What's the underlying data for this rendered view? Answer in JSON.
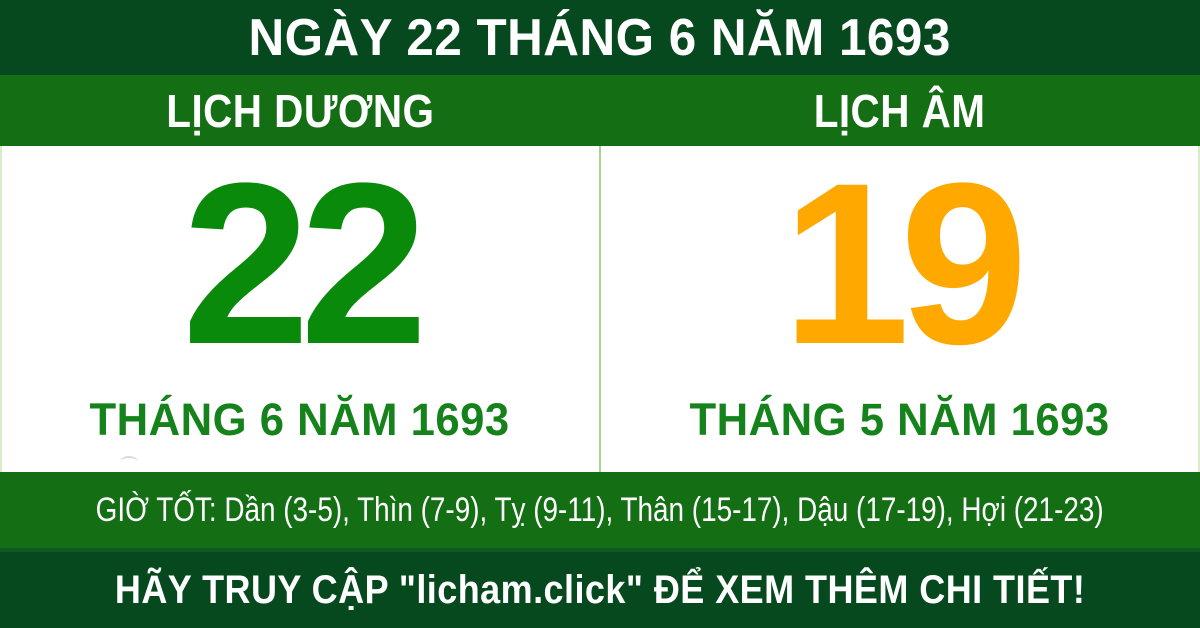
{
  "colors": {
    "dark_green": "#07491f",
    "medium_green": "#146e14",
    "number_green": "#0a8a0a",
    "month_green": "#15821c",
    "lunar_orange": "#ffa800",
    "divider_green": "#a7d78f"
  },
  "header": {
    "title": "NGÀY 22 THÁNG 6 NĂM 1693"
  },
  "calendars": {
    "solar": {
      "label": "LỊCH DƯƠNG",
      "day": "22",
      "month_year": "THÁNG 6 NĂM 1693"
    },
    "lunar": {
      "label": "LỊCH ÂM",
      "day": "19",
      "month_year": "THÁNG 5 NĂM 1693"
    }
  },
  "good_hours": {
    "text": "GIỜ TỐT: Dần (3-5), Thìn (7-9), Tỵ (9-11), Thân (15-17), Dậu (17-19), Hợi (21-23)"
  },
  "footer": {
    "text": "HÃY TRUY CẬP \"licham.click\" ĐỂ XEM THÊM CHI TIẾT!"
  }
}
